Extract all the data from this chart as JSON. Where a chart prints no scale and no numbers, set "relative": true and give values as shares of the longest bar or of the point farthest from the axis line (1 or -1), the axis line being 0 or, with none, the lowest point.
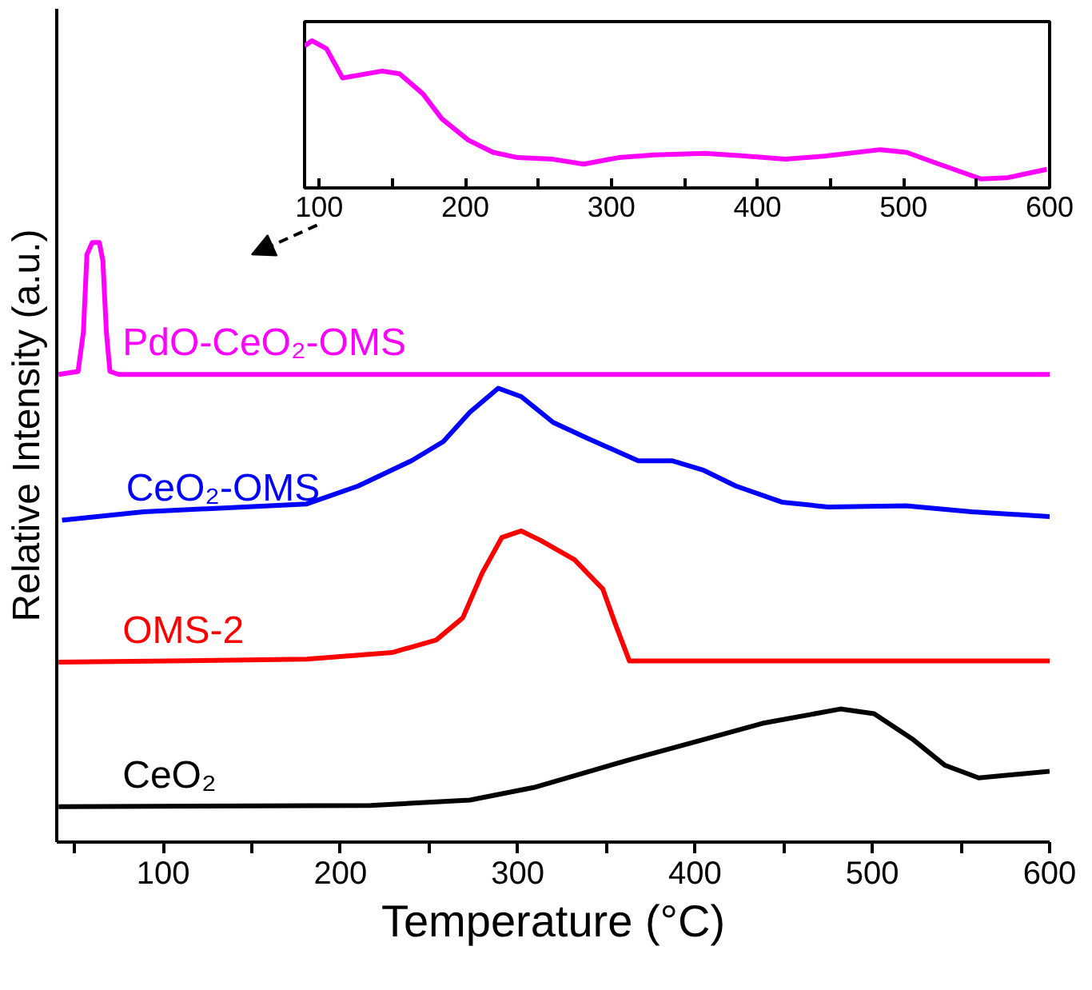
{
  "chart_data": [
    {
      "type": "line",
      "relative": true,
      "xlabel": "Temperature (°C)",
      "ylabel": "Relative Intensity (a.u.)",
      "xlim": [
        40,
        600
      ],
      "xticks": [
        {
          "value": 50,
          "label": null
        },
        100,
        {
          "value": 150,
          "label": null
        },
        200,
        {
          "value": 250,
          "label": null
        },
        300,
        {
          "value": 350,
          "label": null
        },
        400,
        {
          "value": 450,
          "label": null
        },
        500,
        {
          "value": 550,
          "label": null
        },
        600
      ],
      "tick_labels": "x",
      "series": [
        {
          "name": "PdO-CeO₂-OMS",
          "color": "#ff00ff",
          "x": [
            41,
            52,
            55,
            57,
            60,
            64,
            66,
            68,
            70,
            75,
            600
          ],
          "values": [
            0.78,
            0.785,
            0.85,
            0.98,
            1.0,
            1.0,
            0.97,
            0.85,
            0.785,
            0.78,
            0.78
          ]
        },
        {
          "name": "CeO₂-OMS",
          "color": "#0000ff",
          "x": [
            43,
            89,
            181,
            210,
            240,
            258,
            273,
            289,
            302,
            320,
            339,
            368,
            387,
            405,
            423,
            449,
            475,
            519,
            556,
            600
          ],
          "values": [
            0.537,
            0.551,
            0.564,
            0.594,
            0.636,
            0.668,
            0.717,
            0.757,
            0.743,
            0.7,
            0.674,
            0.636,
            0.636,
            0.62,
            0.594,
            0.567,
            0.559,
            0.561,
            0.551,
            0.543
          ]
        },
        {
          "name": "OMS-2",
          "color": "#ff0000",
          "x": [
            41,
            181,
            229,
            254,
            269,
            280,
            291,
            302,
            313,
            332,
            348,
            355,
            363,
            401,
            600
          ],
          "values": [
            0.3,
            0.305,
            0.316,
            0.337,
            0.374,
            0.449,
            0.508,
            0.519,
            0.503,
            0.471,
            0.422,
            0.364,
            0.302,
            0.302,
            0.302
          ]
        },
        {
          "name": "CeO₂",
          "color": "#000000",
          "x": [
            41,
            217,
            273,
            309,
            365,
            401,
            438,
            482,
            501,
            523,
            541,
            560,
            600
          ],
          "values": [
            0.059,
            0.061,
            0.07,
            0.091,
            0.139,
            0.168,
            0.198,
            0.222,
            0.214,
            0.171,
            0.128,
            0.107,
            0.118
          ]
        }
      ]
    },
    {
      "type": "line",
      "relative": true,
      "xlim": [
        90,
        600
      ],
      "xticks": [
        100,
        {
          "value": 150,
          "label": null
        },
        200,
        {
          "value": 250,
          "label": null
        },
        300,
        {
          "value": 350,
          "label": null
        },
        400,
        {
          "value": 450,
          "label": null
        },
        500,
        {
          "value": 550,
          "label": null
        },
        600
      ],
      "tick_labels": "x",
      "series": [
        {
          "color": "#ff00ff",
          "x": [
            90,
            95,
            105,
            116,
            143,
            155,
            171,
            184,
            202,
            219,
            236,
            260,
            281,
            305,
            329,
            364,
            391,
            419,
            447,
            484,
            502,
            522,
            553,
            571,
            598
          ],
          "values": [
            0.964,
            1.0,
            0.946,
            0.747,
            0.794,
            0.776,
            0.639,
            0.469,
            0.325,
            0.242,
            0.206,
            0.195,
            0.162,
            0.206,
            0.224,
            0.235,
            0.217,
            0.195,
            0.217,
            0.26,
            0.242,
            0.17,
            0.061,
            0.069,
            0.126
          ]
        }
      ]
    }
  ]
}
